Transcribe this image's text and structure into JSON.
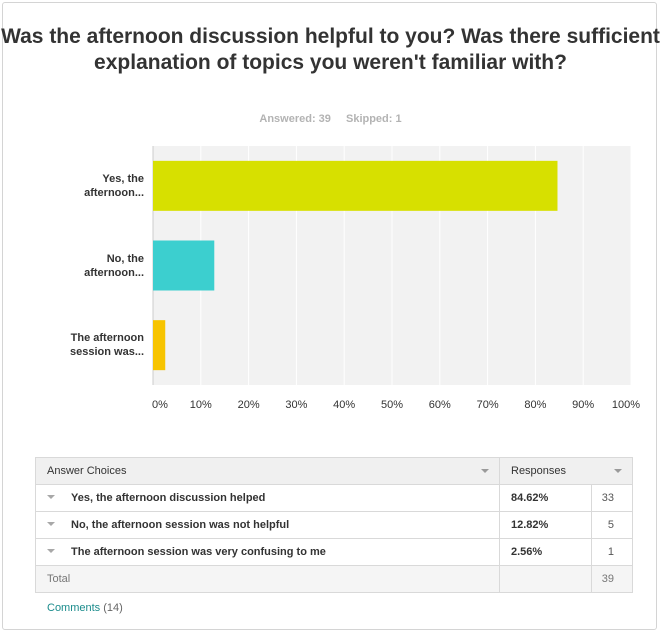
{
  "question": {
    "title": "Was the afternoon discussion helpful to you? Was there sufficient explanation of topics you weren't familiar with?",
    "answered": "Answered: 39",
    "skipped": "Skipped: 1"
  },
  "chart_data": {
    "type": "bar",
    "orientation": "horizontal",
    "categories": [
      "Yes, the afternoon...",
      "No, the afternoon...",
      "The afternoon session was..."
    ],
    "values": [
      84.62,
      12.82,
      2.56
    ],
    "colors": [
      "#d7e000",
      "#3ccfcf",
      "#f7c400"
    ],
    "xlim": [
      0,
      100
    ],
    "xticks": [
      "0%",
      "10%",
      "20%",
      "30%",
      "40%",
      "50%",
      "60%",
      "70%",
      "80%",
      "90%",
      "100%"
    ],
    "grid": true
  },
  "table": {
    "col_choices": "Answer Choices",
    "col_responses": "Responses",
    "rows": [
      {
        "choice": "Yes, the afternoon discussion helped",
        "percent": "84.62%",
        "count": "33"
      },
      {
        "choice": "No, the afternoon session was not helpful",
        "percent": "12.82%",
        "count": "5"
      },
      {
        "choice": "The afternoon session was very confusing to me",
        "percent": "2.56%",
        "count": "1"
      }
    ],
    "total_label": "Total",
    "total_count": "39"
  },
  "comments": {
    "label": "Comments",
    "count": "(14)"
  }
}
